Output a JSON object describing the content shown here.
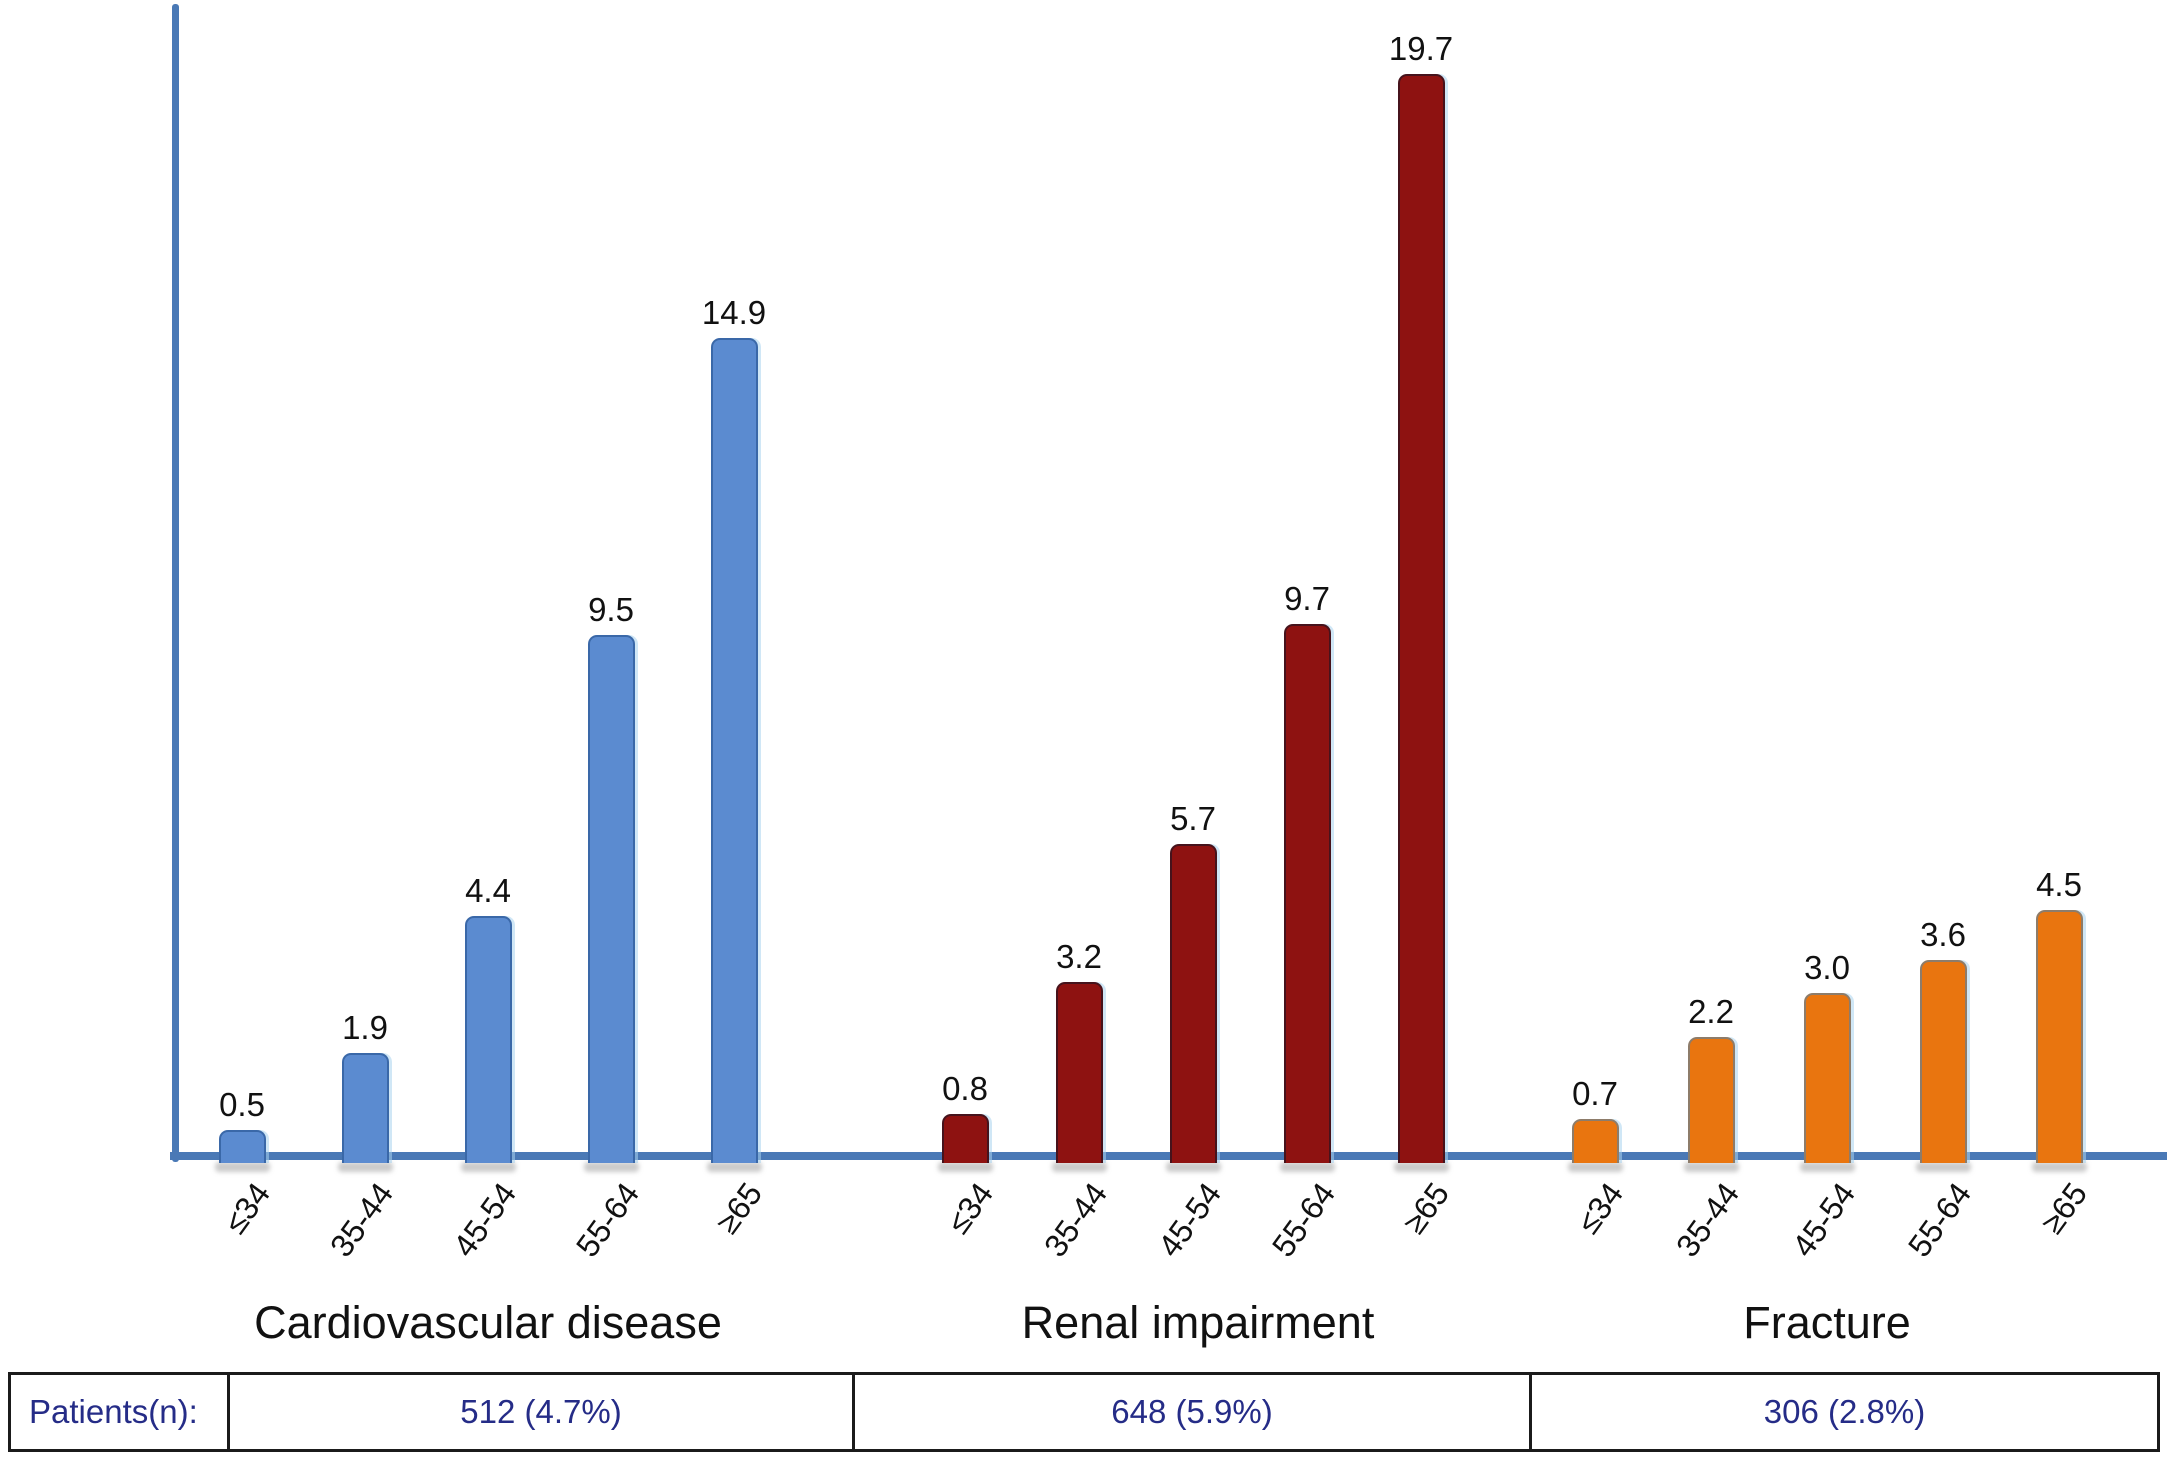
{
  "chart_data": {
    "type": "bar",
    "title": "",
    "categories": [
      "≤34",
      "35-44",
      "45-54",
      "55-64",
      "≥65"
    ],
    "series": [
      {
        "name": "Cardiovascular disease",
        "values": [
          0.5,
          1.9,
          4.4,
          9.5,
          14.9
        ],
        "value_labels": [
          "0.5",
          "1.9",
          "4.4",
          "9.5",
          "14.9"
        ],
        "color": "#5b8bd0",
        "border_color": "#3a68a8"
      },
      {
        "name": "Renal impairment",
        "values": [
          0.8,
          3.2,
          5.7,
          9.7,
          19.7
        ],
        "value_labels": [
          "0.8",
          "3.2",
          "5.7",
          "9.7",
          "19.7"
        ],
        "color": "#8e1211",
        "border_color": "#46131c"
      },
      {
        "name": "Fracture",
        "values": [
          0.7,
          2.2,
          3.0,
          3.6,
          4.5
        ],
        "value_labels": [
          "0.7",
          "2.2",
          "3.0",
          "3.6",
          "4.5"
        ],
        "color": "#e9750f",
        "border_color": "#8d7c6a"
      }
    ],
    "ylim": [
      0,
      20
    ],
    "grid": false,
    "legend_position": "none",
    "axis_color": "#4a79b6",
    "value_label_color": "#111111"
  },
  "footer_table": {
    "row_label": "Patients(n):",
    "cells": [
      "512 (4.7%)",
      "648 (5.9%)",
      "306 (2.8%)"
    ],
    "text_color": "#252c87",
    "border_color": "#1b1b1b"
  }
}
